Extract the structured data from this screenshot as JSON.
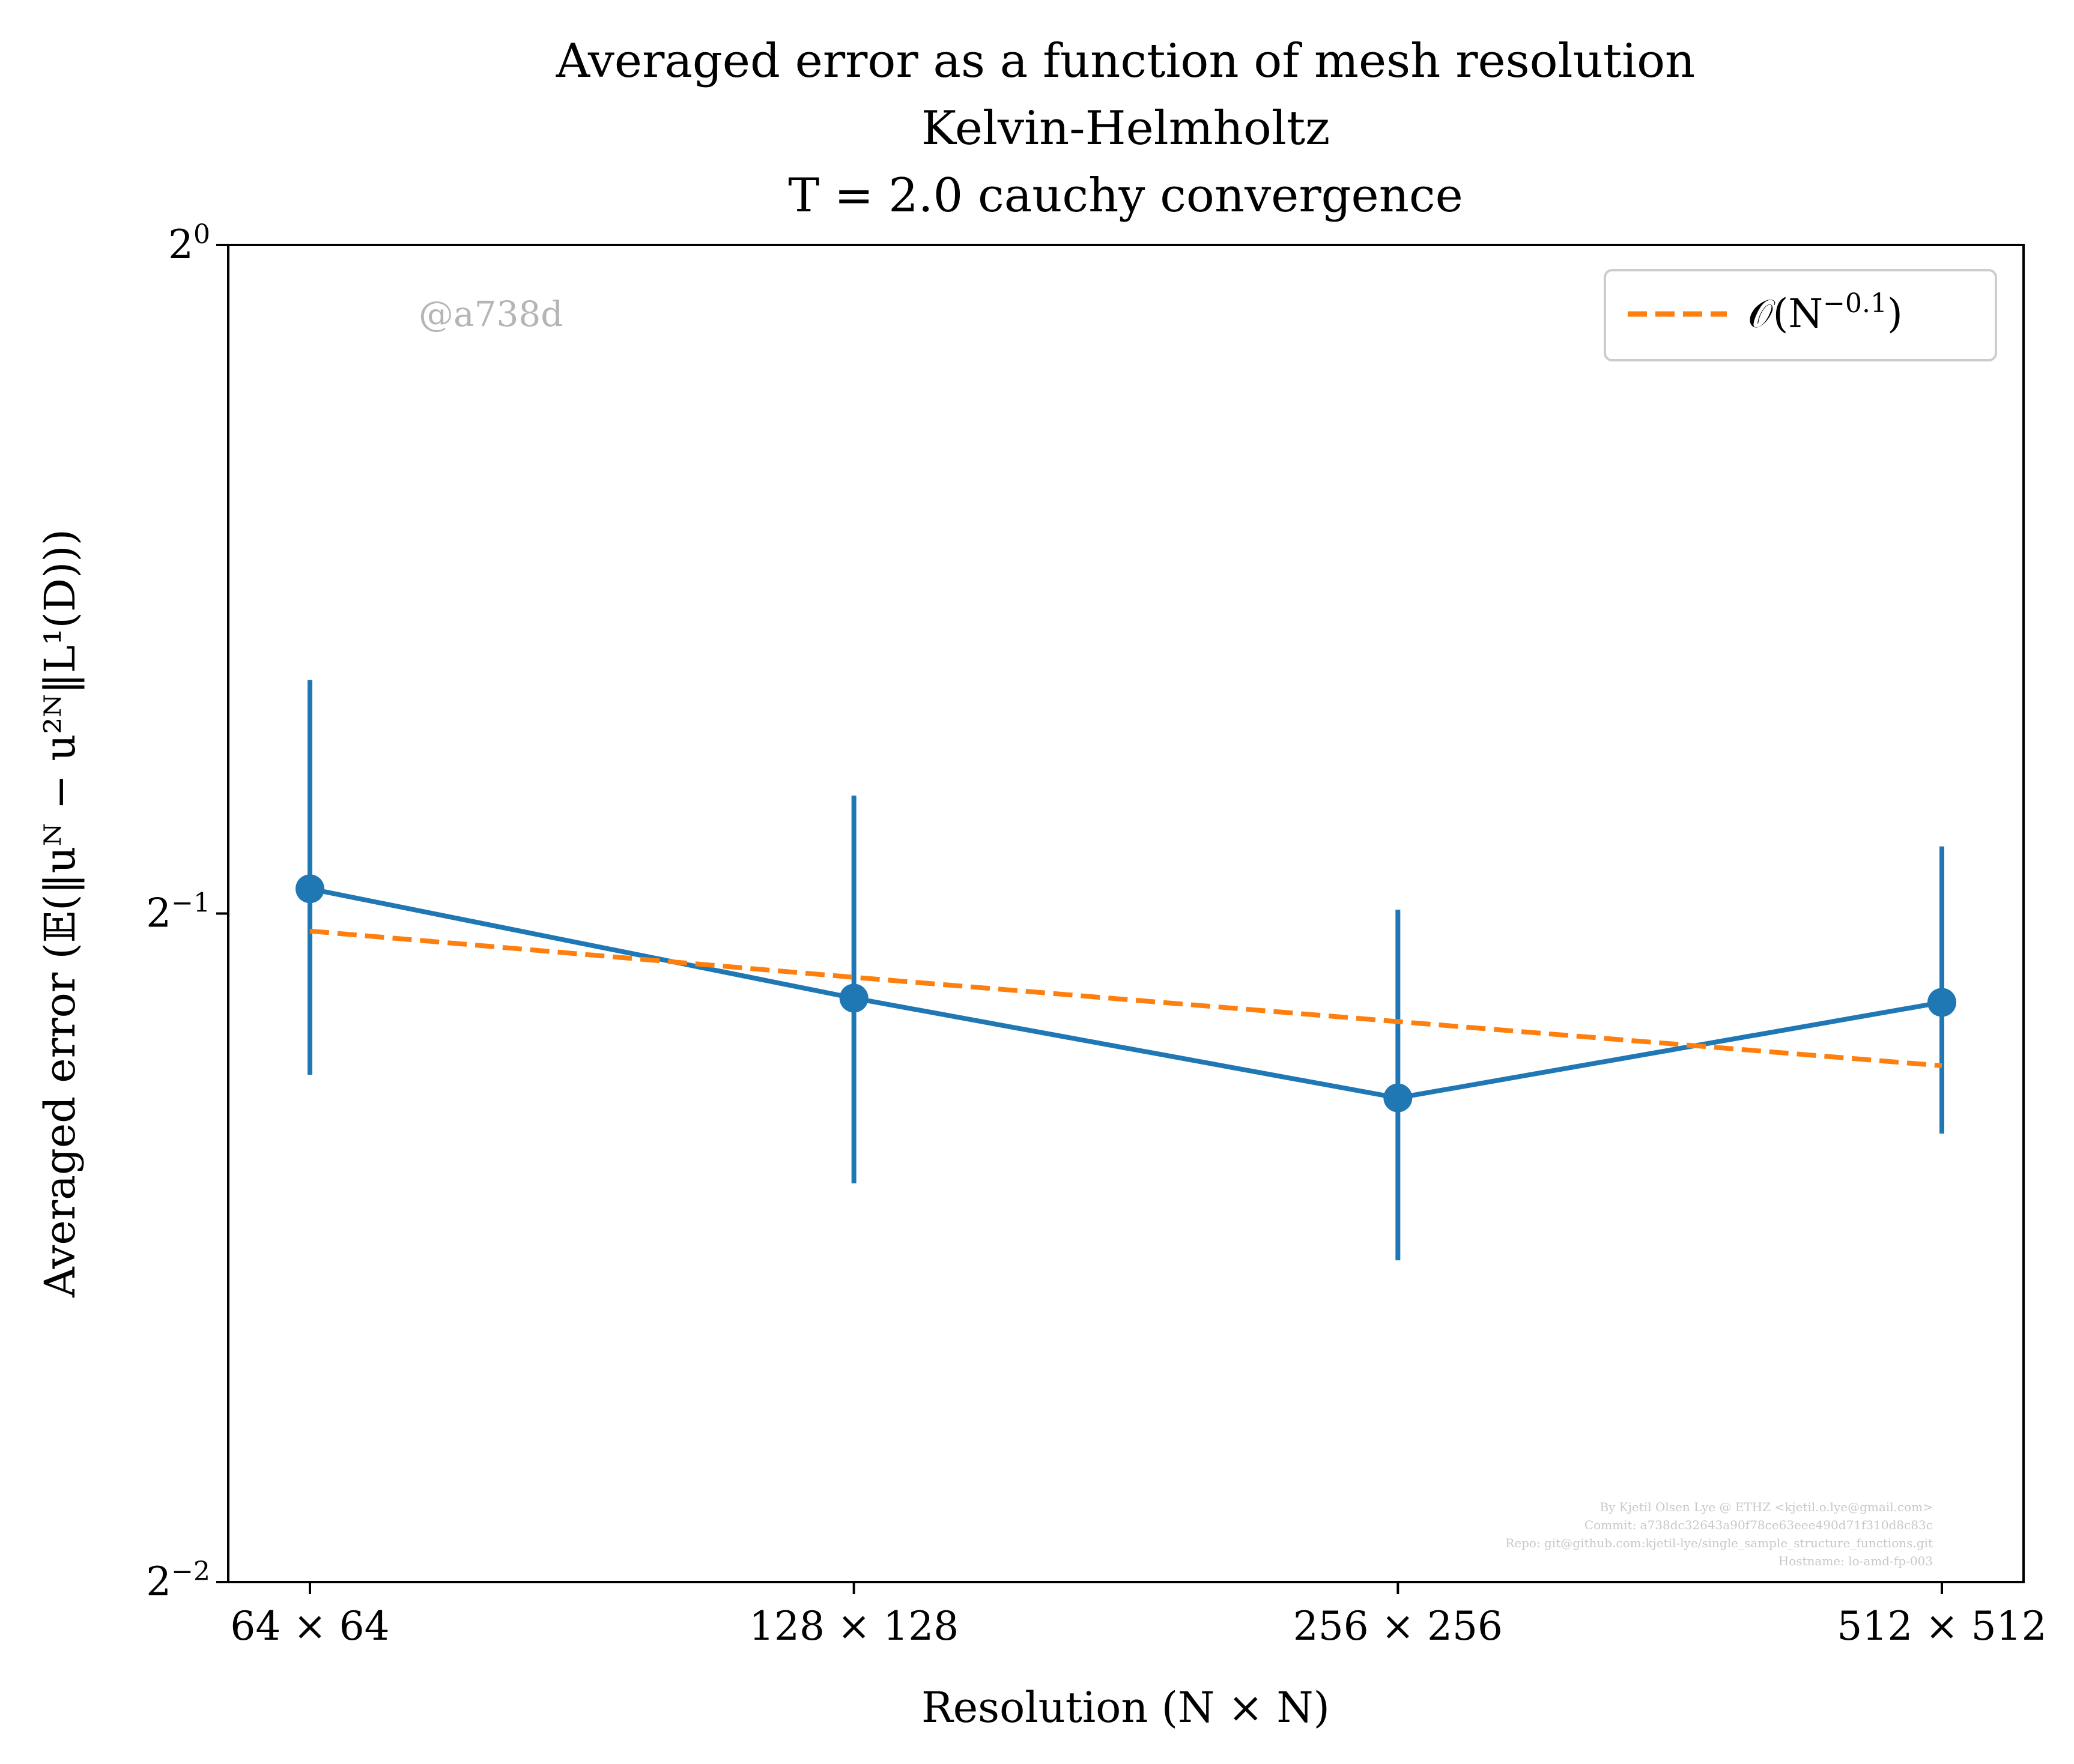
{
  "chart_data": {
    "type": "line",
    "title": [
      "Averaged error as a function of mesh resolution",
      "Kelvin-Helmholtz",
      "T = 2.0 cauchy convergence"
    ],
    "xlabel": "Resolution (N × N)",
    "ylabel": "Averaged error (𝔼(‖uᴺ − u²ᴺ‖L¹(D)))",
    "yscale": "log2",
    "ylim_exponent": [
      -2,
      0
    ],
    "yticks": [
      {
        "value": 1.0,
        "label": "2",
        "sup": "0"
      },
      {
        "value": 0.5,
        "label": "2",
        "sup": "−1"
      },
      {
        "value": 0.25,
        "label": "2",
        "sup": "−2"
      }
    ],
    "categories": [
      "64 × 64",
      "128 × 128",
      "256 × 256",
      "512 × 512"
    ],
    "series": [
      {
        "color": "#1f77b4",
        "style": "solid",
        "marker": "circle",
        "values": [
          0.513,
          0.458,
          0.413,
          0.456
        ],
        "err_low": [
          0.423,
          0.378,
          0.349,
          0.398
        ],
        "err_high": [
          0.637,
          0.565,
          0.502,
          0.536
        ]
      },
      {
        "name": "𝒪(N^−0.1)",
        "color": "#ff7f0e",
        "style": "dashed",
        "values": [
          0.491,
          0.468,
          0.447,
          0.427
        ]
      }
    ],
    "legend": {
      "position": "top-right",
      "label": "𝒪(N",
      "sup": "−0.1",
      "close": ")"
    },
    "grid": false
  },
  "watermark": "@a738d",
  "footnote": [
    "By Kjetil Olsen Lye @ ETHZ <kjetil.o.lye@gmail.com>",
    "Commit: a738dc32643a90f78ce63eee490d71f310d8c83c",
    "Repo: git@github.com:kjetil-lye/single_sample_structure_functions.git",
    "Hostname: lo-amd-fp-003"
  ]
}
